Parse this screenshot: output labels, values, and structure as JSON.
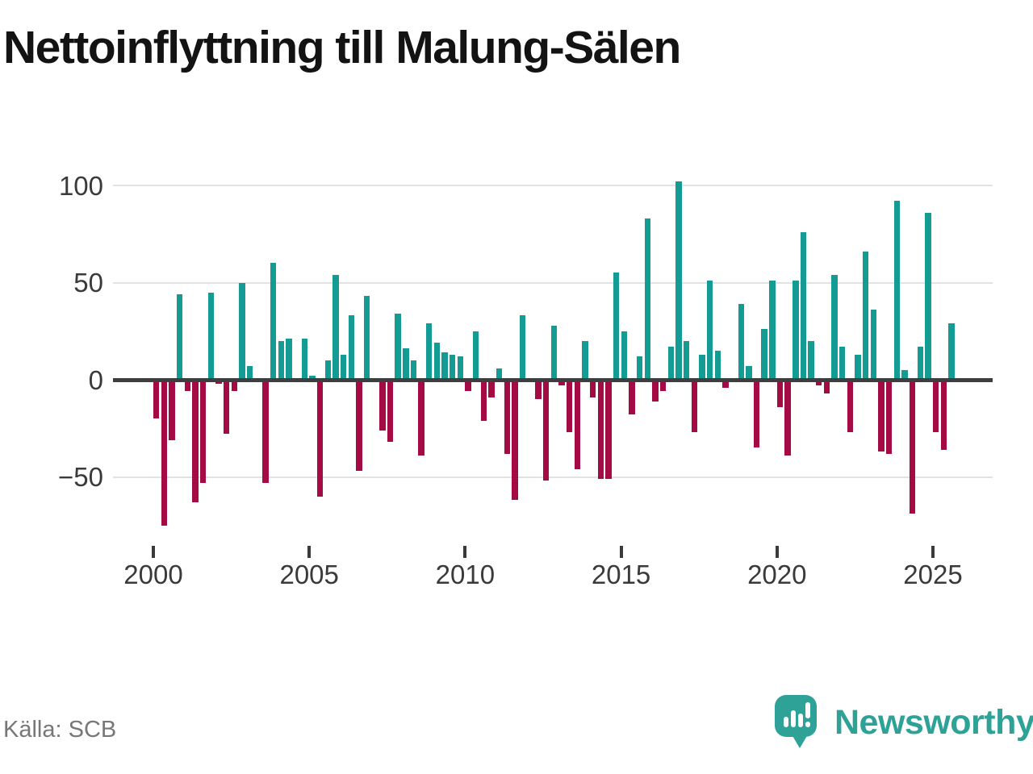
{
  "title": "Nettoinflyttning till Malung-Sälen",
  "source": "Källa: SCB",
  "brand": {
    "name": "Newsworthy",
    "icon": "speech-bubble-bar-chart-icon"
  },
  "colors": {
    "positive_bar": "#149c94",
    "negative_bar": "#a40a44",
    "gridline": "#e2e2e2",
    "zero_line": "#3e3e3e",
    "axis_text": "#3a3a3a",
    "title_text": "#131313",
    "source_text": "#777777",
    "brand_teal": "#2fa298"
  },
  "chart_data": {
    "type": "bar",
    "title": "Nettoinflyttning till Malung-Sälen",
    "frequency": "quarterly",
    "x_start": {
      "year": 2000,
      "quarter": 1
    },
    "x_end": {
      "year": 2025,
      "quarter": 3
    },
    "values": [
      -20,
      -75,
      -31,
      44,
      -6,
      -63,
      -53,
      45,
      -2,
      -28,
      -6,
      50,
      7,
      0,
      -53,
      60,
      20,
      21,
      0,
      21,
      2,
      -60,
      10,
      54,
      13,
      33,
      -47,
      43,
      0,
      -26,
      -32,
      34,
      16,
      10,
      -39,
      29,
      19,
      14,
      13,
      12,
      -6,
      25,
      -21,
      -9,
      6,
      -38,
      -62,
      33,
      0,
      -10,
      -52,
      28,
      -3,
      -27,
      -46,
      20,
      -9,
      -51,
      -51,
      55,
      25,
      -18,
      12,
      83,
      -11,
      -6,
      17,
      102,
      20,
      -27,
      13,
      51,
      15,
      -4,
      0,
      39,
      7,
      -35,
      26,
      51,
      -14,
      -39,
      51,
      76,
      20,
      -3,
      -7,
      54,
      17,
      -27,
      13,
      66,
      36,
      -37,
      -38,
      92,
      5,
      -69,
      17,
      86,
      -27,
      -36,
      29
    ],
    "x_tick_years": [
      2000,
      2005,
      2010,
      2015,
      2020,
      2025
    ],
    "x_tick_labels": [
      "2000",
      "2005",
      "2010",
      "2015",
      "2020",
      "2025"
    ],
    "y_ticks": [
      100,
      50,
      0,
      -50
    ],
    "y_tick_labels": [
      "100",
      "50",
      "0",
      "−50"
    ],
    "ylim": [
      -80,
      110
    ],
    "grid": true,
    "legend": false
  }
}
